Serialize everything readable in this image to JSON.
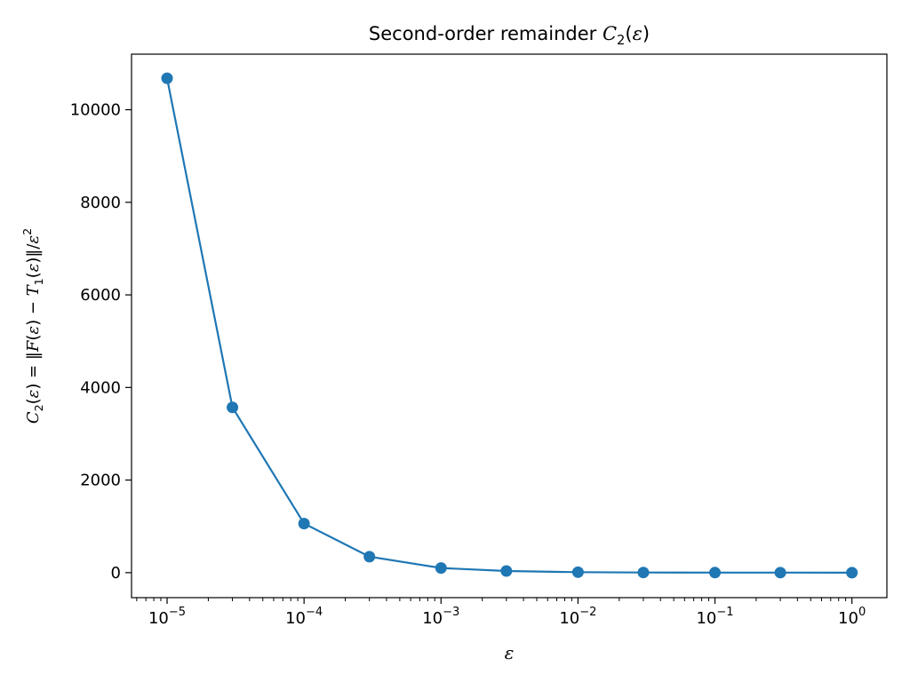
{
  "chart_data": {
    "type": "line",
    "title": "Second-order remainder C₂(ε)",
    "xlabel": "ε",
    "ylabel": "C₂(ε) = ‖F(ε) − T₁(ε)‖/ε²",
    "xscale": "log",
    "xlim": [
      5.5e-06,
      1.8
    ],
    "ylim": [
      -540,
      11200
    ],
    "grid": false,
    "legend": "none",
    "x_ticks": [
      1e-05,
      0.0001,
      0.001,
      0.01,
      0.1,
      1
    ],
    "x_tick_labels": [
      {
        "base": "10",
        "exp": "−5"
      },
      {
        "base": "10",
        "exp": "−4"
      },
      {
        "base": "10",
        "exp": "−3"
      },
      {
        "base": "10",
        "exp": "−2"
      },
      {
        "base": "10",
        "exp": "−1"
      },
      {
        "base": "10",
        "exp": "0"
      }
    ],
    "y_ticks": [
      0,
      2000,
      4000,
      6000,
      8000,
      10000
    ],
    "y_tick_labels": [
      "0",
      "2000",
      "4000",
      "6000",
      "8000",
      "10000"
    ],
    "series": [
      {
        "color": "#1f77b4",
        "marker": "circle",
        "x": [
          1e-05,
          3e-05,
          0.0001,
          0.0003,
          0.001,
          0.003,
          0.01,
          0.03,
          0.1,
          0.3,
          1
        ],
        "y": [
          10680,
          3570,
          1060,
          345,
          100,
          35,
          10,
          3,
          1,
          0.3,
          0.1
        ]
      }
    ]
  }
}
